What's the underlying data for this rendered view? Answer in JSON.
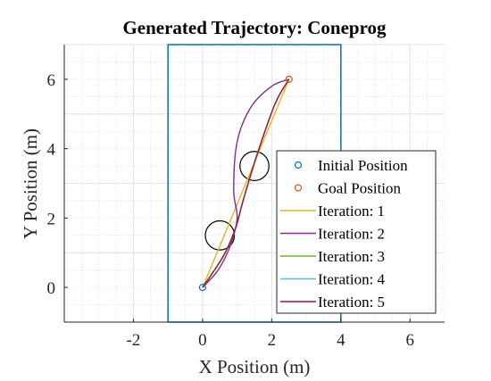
{
  "chart_data": {
    "type": "line",
    "title": "Generated Trajectory: Coneprog",
    "xlabel": "X Position (m)",
    "ylabel": "Y Position (m)",
    "xlim": [
      -4,
      7
    ],
    "ylim": [
      -1,
      7
    ],
    "xticks": [
      -2,
      0,
      2,
      4,
      6
    ],
    "yticks": [
      0,
      2,
      4,
      6
    ],
    "grid": true,
    "minor_grid": true,
    "legend_position": "lower-right",
    "boundary": {
      "x": [
        -1,
        4
      ],
      "y": [
        -1,
        7
      ],
      "color": "#0072bd"
    },
    "obstacles": [
      {
        "cx": 0.5,
        "cy": 1.5,
        "r": 0.42
      },
      {
        "cx": 1.5,
        "cy": 3.5,
        "r": 0.42
      }
    ],
    "initial_position": {
      "name": "Initial Position",
      "x": 0,
      "y": 0,
      "color": "#0072bd"
    },
    "goal_position": {
      "name": "Goal Position",
      "x": 2.5,
      "y": 6,
      "color": "#d95319"
    },
    "series": [
      {
        "name": "Iteration: 1",
        "color": "#edb120",
        "x": [
          0,
          2.5
        ],
        "y": [
          0,
          6
        ]
      },
      {
        "name": "Iteration: 2",
        "color": "#7e2f8e",
        "x": [
          0,
          0.45,
          0.8,
          1.0,
          0.9,
          1.0,
          1.4,
          2.0,
          2.5
        ],
        "y": [
          0,
          0.5,
          1.2,
          2.0,
          2.8,
          4.2,
          5.2,
          5.8,
          6.0
        ]
      },
      {
        "name": "Iteration: 3",
        "color": "#77ac30",
        "x": [
          0,
          0.6,
          0.95,
          1.2,
          1.6,
          2.1,
          2.5
        ],
        "y": [
          0,
          0.9,
          1.7,
          2.6,
          3.9,
          5.3,
          6.0
        ]
      },
      {
        "name": "Iteration: 4",
        "color": "#4dbeee",
        "x": [
          0,
          0.6,
          0.95,
          1.2,
          1.6,
          2.1,
          2.5
        ],
        "y": [
          0,
          0.9,
          1.7,
          2.6,
          3.9,
          5.3,
          6.0
        ]
      },
      {
        "name": "Iteration: 5",
        "color": "#a2142f",
        "x": [
          0,
          0.6,
          0.95,
          1.2,
          1.6,
          2.1,
          2.5
        ],
        "y": [
          0,
          0.9,
          1.7,
          2.6,
          3.9,
          5.3,
          6.0
        ]
      }
    ]
  }
}
